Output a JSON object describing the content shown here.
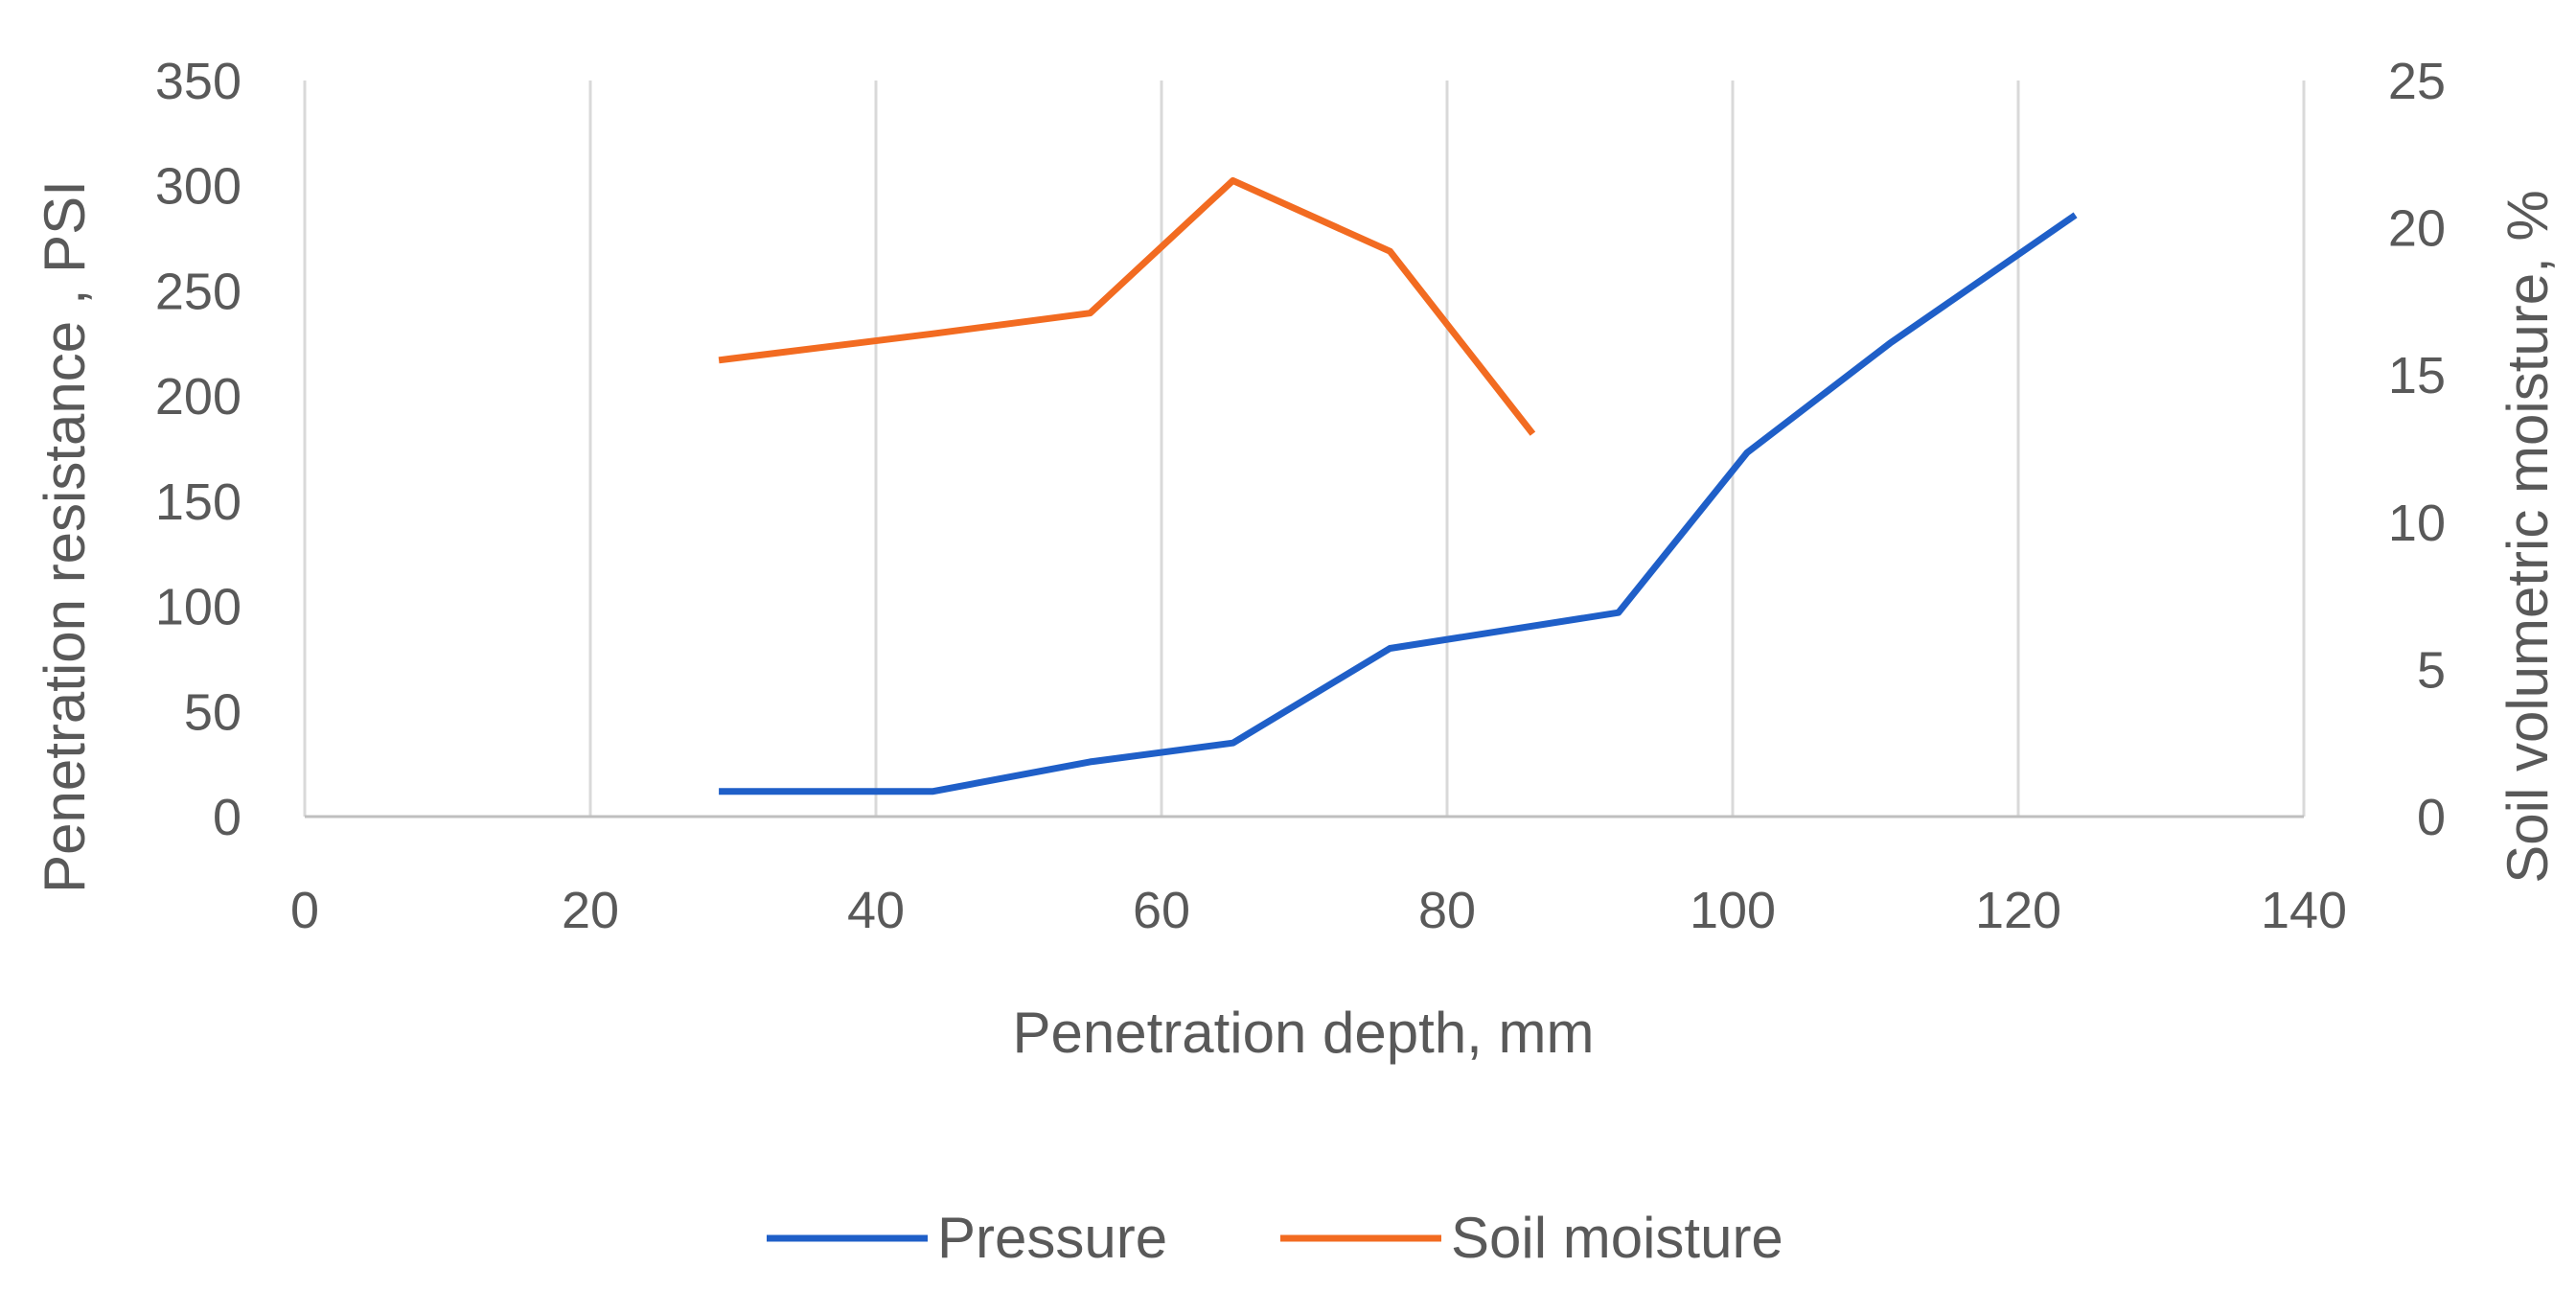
{
  "chart_data": {
    "type": "line",
    "title": "",
    "xlabel": "Penetration depth,  mm",
    "ylabel": "Penetration resistance , PSI",
    "y2label": "Soil volumetric moisture, %",
    "xlim": [
      0,
      140
    ],
    "ylim": [
      0,
      350
    ],
    "y2lim": [
      0,
      25
    ],
    "xticks": [
      0,
      20,
      40,
      60,
      80,
      100,
      120,
      140
    ],
    "yticks": [
      0,
      50,
      100,
      150,
      200,
      250,
      300,
      350
    ],
    "y2ticks": [
      0,
      5,
      10,
      15,
      20,
      25
    ],
    "grid": "vertical",
    "legend_position": "bottom",
    "series": [
      {
        "name": "Pressure",
        "axis": "left",
        "color": "#1F5FC8",
        "x": [
          29,
          44,
          55,
          65,
          76,
          92,
          101,
          111,
          124
        ],
        "y": [
          12,
          12,
          26,
          35,
          80,
          97,
          173,
          225,
          286
        ]
      },
      {
        "name": "Soil moisture",
        "axis": "right",
        "color": "#F26B21",
        "x": [
          29,
          44,
          55,
          65,
          76,
          86
        ],
        "y": [
          15.5,
          16.4,
          17.1,
          21.6,
          19.2,
          13.0
        ]
      }
    ]
  }
}
